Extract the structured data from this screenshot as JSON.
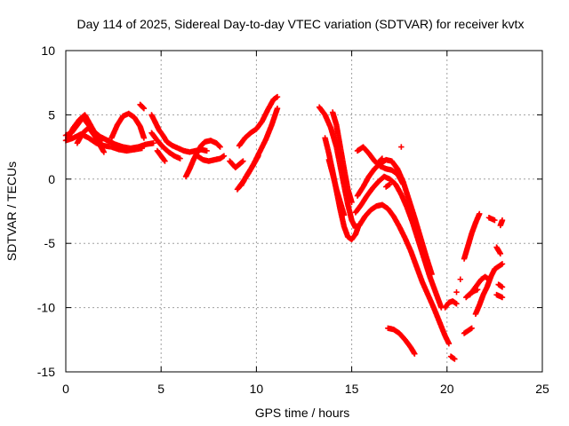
{
  "chart_data": {
    "type": "scatter",
    "title": "Day 114 of 2025, Sidereal Day-to-day VTEC variation (SDTVAR) for receiver kvtx",
    "xlabel": "GPS time / hours",
    "ylabel": "SDTVAR / TECUs",
    "xlim": [
      0,
      25
    ],
    "ylim": [
      -15,
      10
    ],
    "xticks": [
      "0",
      "5",
      "10",
      "15",
      "20",
      "25"
    ],
    "yticks": [
      "-15",
      "-10",
      "-5",
      "0",
      "5",
      "10"
    ],
    "grid": true,
    "marker": "+",
    "color": "#ff0000",
    "segments": [
      [
        [
          0.0,
          3.4
        ],
        [
          0.3,
          3.6
        ],
        [
          0.6,
          4.2
        ],
        [
          0.9,
          4.8
        ],
        [
          1.1,
          4.4
        ],
        [
          1.4,
          3.8
        ],
        [
          1.8,
          3.3
        ],
        [
          2.2,
          3.0
        ],
        [
          2.6,
          2.7
        ],
        [
          3.0,
          2.5
        ],
        [
          3.4,
          2.4
        ],
        [
          3.8,
          2.5
        ],
        [
          4.2,
          2.7
        ],
        [
          4.6,
          2.8
        ]
      ],
      [
        [
          0.0,
          3.0
        ],
        [
          0.4,
          3.2
        ],
        [
          0.8,
          3.5
        ],
        [
          1.2,
          3.2
        ],
        [
          1.6,
          2.8
        ],
        [
          2.0,
          2.6
        ],
        [
          2.4,
          2.5
        ],
        [
          2.8,
          2.3
        ],
        [
          3.2,
          2.2
        ],
        [
          3.6,
          2.3
        ],
        [
          4.0,
          2.4
        ]
      ],
      [
        [
          0.1,
          3.2
        ],
        [
          0.4,
          4.0
        ],
        [
          0.7,
          4.6
        ],
        [
          1.0,
          5.0
        ],
        [
          1.3,
          4.2
        ],
        [
          1.6,
          3.4
        ],
        [
          1.9,
          3.0
        ]
      ],
      [
        [
          0.6,
          2.8
        ],
        [
          0.9,
          3.6
        ],
        [
          1.2,
          4.0
        ],
        [
          1.5,
          3.4
        ],
        [
          1.8,
          2.6
        ],
        [
          2.0,
          2.1
        ]
      ],
      [
        [
          2.4,
          3.2
        ],
        [
          2.7,
          4.2
        ],
        [
          3.0,
          4.9
        ],
        [
          3.3,
          5.1
        ],
        [
          3.6,
          4.8
        ],
        [
          3.9,
          4.1
        ],
        [
          4.1,
          3.2
        ]
      ],
      [
        [
          3.9,
          5.8
        ],
        [
          4.1,
          5.5
        ]
      ],
      [
        [
          4.5,
          5.0
        ],
        [
          4.7,
          4.4
        ],
        [
          4.9,
          3.8
        ],
        [
          5.1,
          3.4
        ],
        [
          5.3,
          2.9
        ],
        [
          5.6,
          2.6
        ],
        [
          5.9,
          2.4
        ],
        [
          6.2,
          2.2
        ],
        [
          6.5,
          2.1
        ],
        [
          6.8,
          2.2
        ],
        [
          7.1,
          2.3
        ],
        [
          7.4,
          2.2
        ]
      ],
      [
        [
          4.5,
          3.6
        ],
        [
          4.8,
          3.0
        ],
        [
          5.1,
          2.5
        ],
        [
          5.4,
          2.1
        ],
        [
          5.7,
          1.8
        ],
        [
          6.0,
          1.6
        ]
      ],
      [
        [
          4.8,
          2.2
        ],
        [
          5.0,
          1.8
        ],
        [
          5.2,
          1.4
        ]
      ],
      [
        [
          6.3,
          0.2
        ],
        [
          6.5,
          0.8
        ],
        [
          6.7,
          1.5
        ],
        [
          6.9,
          2.1
        ],
        [
          7.1,
          2.6
        ],
        [
          7.3,
          2.9
        ],
        [
          7.6,
          3.0
        ],
        [
          7.9,
          2.8
        ],
        [
          8.1,
          2.5
        ]
      ],
      [
        [
          6.9,
          1.8
        ],
        [
          7.2,
          1.5
        ],
        [
          7.5,
          1.4
        ],
        [
          7.8,
          1.5
        ],
        [
          8.1,
          1.6
        ],
        [
          8.3,
          1.8
        ]
      ],
      [
        [
          8.6,
          1.4
        ],
        [
          8.9,
          0.9
        ],
        [
          9.3,
          1.4
        ]
      ],
      [
        [
          9.0,
          -0.8
        ],
        [
          9.3,
          -0.2
        ],
        [
          9.6,
          0.5
        ],
        [
          9.9,
          1.3
        ],
        [
          10.2,
          2.2
        ],
        [
          10.5,
          3.1
        ],
        [
          10.8,
          4.2
        ],
        [
          11.1,
          5.5
        ]
      ],
      [
        [
          9.1,
          2.6
        ],
        [
          9.4,
          3.2
        ],
        [
          9.7,
          3.6
        ],
        [
          10.0,
          3.9
        ],
        [
          10.3,
          4.5
        ],
        [
          10.6,
          5.4
        ],
        [
          10.9,
          6.2
        ],
        [
          11.1,
          6.4
        ]
      ],
      [
        [
          9.2,
          -0.5
        ],
        [
          9.5,
          0.3
        ],
        [
          9.8,
          1.0
        ],
        [
          10.1,
          1.8
        ]
      ],
      [
        [
          13.3,
          5.6
        ],
        [
          13.6,
          5.0
        ],
        [
          13.9,
          4.0
        ],
        [
          14.2,
          2.5
        ],
        [
          14.4,
          1.0
        ],
        [
          14.6,
          -0.5
        ],
        [
          14.8,
          -2.0
        ],
        [
          15.0,
          -3.2
        ],
        [
          15.2,
          -3.8
        ],
        [
          15.4,
          -3.6
        ],
        [
          15.7,
          -2.9
        ],
        [
          16.0,
          -2.4
        ],
        [
          16.3,
          -2.1
        ],
        [
          16.6,
          -2.0
        ],
        [
          16.9,
          -2.3
        ],
        [
          17.2,
          -2.9
        ],
        [
          17.5,
          -3.7
        ],
        [
          17.8,
          -4.6
        ],
        [
          18.1,
          -5.6
        ],
        [
          18.4,
          -6.8
        ],
        [
          18.7,
          -8.0
        ],
        [
          19.0,
          -9.0
        ],
        [
          19.3,
          -10.0
        ],
        [
          19.6,
          -11.1
        ],
        [
          19.9,
          -12.2
        ],
        [
          20.1,
          -12.8
        ]
      ],
      [
        [
          13.6,
          3.2
        ],
        [
          13.8,
          2.0
        ],
        [
          14.0,
          0.6
        ],
        [
          14.2,
          -0.9
        ],
        [
          14.4,
          -2.4
        ],
        [
          14.6,
          -3.7
        ],
        [
          14.8,
          -4.5
        ],
        [
          15.0,
          -4.7
        ],
        [
          15.2,
          -4.3
        ],
        [
          15.4,
          -3.5
        ]
      ],
      [
        [
          14.0,
          5.2
        ],
        [
          14.2,
          4.2
        ],
        [
          14.4,
          2.5
        ],
        [
          14.6,
          0.8
        ],
        [
          14.8,
          -0.8
        ],
        [
          15.0,
          -1.8
        ]
      ],
      [
        [
          13.8,
          1.5
        ],
        [
          14.0,
          0.4
        ],
        [
          14.2,
          -0.8
        ],
        [
          14.4,
          -1.8
        ],
        [
          14.6,
          -2.8
        ]
      ],
      [
        [
          15.2,
          -2.6
        ],
        [
          15.5,
          -2.0
        ],
        [
          15.8,
          -1.3
        ],
        [
          16.1,
          -0.7
        ],
        [
          16.4,
          -0.2
        ],
        [
          16.7,
          0.2
        ],
        [
          17.0,
          0.0
        ],
        [
          17.3,
          -0.4
        ],
        [
          17.6,
          -1.2
        ],
        [
          17.9,
          -2.2
        ],
        [
          18.2,
          -3.4
        ],
        [
          18.5,
          -4.8
        ],
        [
          18.8,
          -6.2
        ],
        [
          19.1,
          -7.6
        ],
        [
          19.4,
          -8.8
        ],
        [
          19.7,
          -10.0
        ]
      ],
      [
        [
          15.3,
          -1.3
        ],
        [
          15.6,
          -0.6
        ],
        [
          15.9,
          0.2
        ],
        [
          16.2,
          0.8
        ],
        [
          16.5,
          1.2
        ],
        [
          16.8,
          1.5
        ],
        [
          17.1,
          1.4
        ],
        [
          17.4,
          0.8
        ],
        [
          17.7,
          -0.2
        ],
        [
          18.0,
          -1.6
        ],
        [
          18.3,
          -3.0
        ],
        [
          18.6,
          -4.5
        ],
        [
          18.9,
          -6.0
        ],
        [
          19.2,
          -7.4
        ]
      ],
      [
        [
          15.3,
          2.2
        ],
        [
          15.6,
          2.5
        ],
        [
          15.9,
          2.0
        ],
        [
          16.2,
          1.4
        ],
        [
          16.5,
          1.0
        ],
        [
          16.8,
          0.8
        ],
        [
          17.1,
          0.7
        ],
        [
          17.4,
          0.4
        ],
        [
          17.7,
          -0.4
        ]
      ],
      [
        [
          16.9,
          -11.6
        ],
        [
          17.2,
          -11.7
        ],
        [
          17.5,
          -12.0
        ],
        [
          17.8,
          -12.5
        ],
        [
          18.1,
          -13.1
        ],
        [
          18.3,
          -13.6
        ]
      ],
      [
        [
          19.9,
          -10.0
        ],
        [
          20.1,
          -9.6
        ],
        [
          20.3,
          -9.5
        ],
        [
          20.5,
          -9.7
        ]
      ],
      [
        [
          20.2,
          -13.8
        ],
        [
          20.4,
          -14.0
        ]
      ],
      [
        [
          20.9,
          -12.0
        ],
        [
          21.1,
          -11.8
        ],
        [
          21.3,
          -11.6
        ]
      ],
      [
        [
          20.9,
          -6.2
        ],
        [
          21.1,
          -5.2
        ],
        [
          21.3,
          -4.2
        ],
        [
          21.5,
          -3.4
        ],
        [
          21.7,
          -2.7
        ]
      ],
      [
        [
          21.2,
          -9.0
        ],
        [
          21.4,
          -8.6
        ],
        [
          21.6,
          -8.2
        ],
        [
          21.8,
          -7.8
        ],
        [
          22.0,
          -7.6
        ],
        [
          22.2,
          -7.8
        ]
      ],
      [
        [
          21.5,
          -10.5
        ],
        [
          21.7,
          -9.8
        ],
        [
          21.9,
          -9.0
        ],
        [
          22.1,
          -8.4
        ],
        [
          22.3,
          -7.6
        ],
        [
          22.5,
          -7.0
        ],
        [
          22.7,
          -6.8
        ],
        [
          22.9,
          -6.6
        ]
      ],
      [
        [
          21.0,
          -9.2
        ],
        [
          21.3,
          -8.8
        ],
        [
          21.6,
          -8.6
        ]
      ],
      [
        [
          22.2,
          -3.0
        ],
        [
          22.5,
          -3.2
        ]
      ],
      [
        [
          22.7,
          -8.2
        ],
        [
          22.9,
          -8.4
        ]
      ],
      [
        [
          22.6,
          -5.3
        ],
        [
          22.8,
          -5.8
        ]
      ],
      [
        [
          22.6,
          -9.0
        ],
        [
          22.9,
          -9.2
        ]
      ],
      [
        [
          22.8,
          -3.6
        ],
        [
          22.9,
          -3.2
        ]
      ],
      [
        [
          16.8,
          -0.6
        ],
        [
          17.0,
          -0.4
        ]
      ],
      [
        [
          17.6,
          2.5
        ]
      ],
      [
        [
          16.4,
          1.3
        ],
        [
          16.6,
          1.6
        ]
      ],
      [
        [
          20.5,
          -8.8
        ]
      ],
      [
        [
          20.7,
          -7.8
        ]
      ]
    ]
  }
}
